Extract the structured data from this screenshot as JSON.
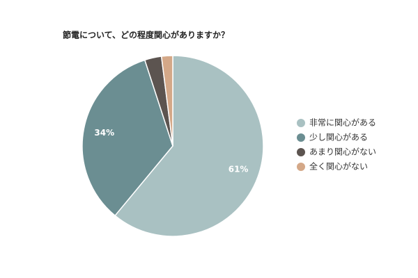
{
  "chart_data": {
    "type": "pie",
    "title": "節電について、どの程度関心がありますか？",
    "categories": [
      "非常に関心がある",
      "少し関心がある",
      "あまり関心がない",
      "全く関心がない"
    ],
    "values": [
      61,
      34,
      3,
      2
    ],
    "value_labels": [
      "61%",
      "34%",
      null,
      null
    ],
    "colors": [
      "#a9c1c2",
      "#6b8e92",
      "#5c5450",
      "#d4a888"
    ],
    "legend": "right"
  }
}
